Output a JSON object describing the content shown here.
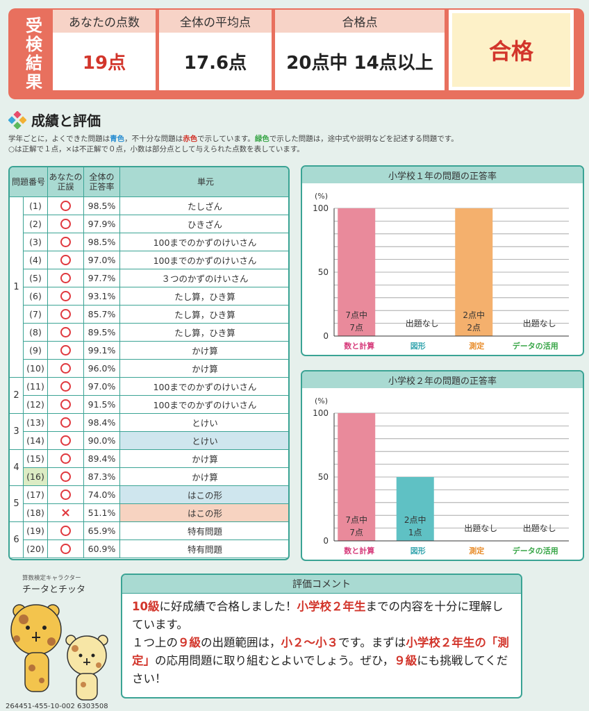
{
  "header": {
    "side_label_chars": [
      "受",
      "検",
      "結",
      "果"
    ],
    "your_score_label": "あなたの点数",
    "your_score": "19点",
    "average_label": "全体の平均点",
    "average": "17.6点",
    "pass_line_label": "合格点",
    "pass_line": "20点中 14点以上",
    "result": "合格"
  },
  "section": {
    "title": "成績と評価",
    "desc1_a": "学年ごとに，よくできた問題は",
    "desc1_blue": "青色",
    "desc1_b": "，不十分な問題は",
    "desc1_red": "赤色",
    "desc1_c": "で示しています。",
    "desc1_green": "緑色",
    "desc1_d": "で示した問題は，途中式や説明などを記述する問題です。",
    "desc2": "○は正解で１点，×は不正解で０点，小数は部分点として与えられた点数を表しています。"
  },
  "table": {
    "headers": {
      "qno": "問題番号",
      "yours_1": "あなたの",
      "yours_2": "正誤",
      "rate_1": "全体の",
      "rate_2": "正答率",
      "unit": "単元"
    },
    "groups": [
      "1",
      "2",
      "3",
      "4",
      "5",
      "6"
    ],
    "rows": [
      {
        "num": "(1)",
        "mark": "○",
        "rate": "98.5%",
        "unit": "たしざん"
      },
      {
        "num": "(2)",
        "mark": "○",
        "rate": "97.9%",
        "unit": "ひきざん"
      },
      {
        "num": "(3)",
        "mark": "○",
        "rate": "98.5%",
        "unit": "100までのかずのけいさん"
      },
      {
        "num": "(4)",
        "mark": "○",
        "rate": "97.0%",
        "unit": "100までのかずのけいさん"
      },
      {
        "num": "(5)",
        "mark": "○",
        "rate": "97.7%",
        "unit": "３つのかずのけいさん"
      },
      {
        "num": "(6)",
        "mark": "○",
        "rate": "93.1%",
        "unit": "たし算，ひき算"
      },
      {
        "num": "(7)",
        "mark": "○",
        "rate": "85.7%",
        "unit": "たし算，ひき算"
      },
      {
        "num": "(8)",
        "mark": "○",
        "rate": "89.5%",
        "unit": "たし算，ひき算"
      },
      {
        "num": "(9)",
        "mark": "○",
        "rate": "99.1%",
        "unit": "かけ算"
      },
      {
        "num": "(10)",
        "mark": "○",
        "rate": "96.0%",
        "unit": "かけ算"
      },
      {
        "num": "(11)",
        "mark": "○",
        "rate": "97.0%",
        "unit": "100までのかずのけいさん"
      },
      {
        "num": "(12)",
        "mark": "○",
        "rate": "91.5%",
        "unit": "100までのかずのけいさん"
      },
      {
        "num": "(13)",
        "mark": "○",
        "rate": "98.4%",
        "unit": "とけい"
      },
      {
        "num": "(14)",
        "mark": "○",
        "rate": "90.0%",
        "unit": "とけい",
        "unit_highlight": "blue"
      },
      {
        "num": "(15)",
        "mark": "○",
        "rate": "89.4%",
        "unit": "かけ算"
      },
      {
        "num": "(16)",
        "mark": "○",
        "rate": "87.3%",
        "unit": "かけ算",
        "num_highlight": "green"
      },
      {
        "num": "(17)",
        "mark": "○",
        "rate": "74.0%",
        "unit": "はこの形",
        "unit_highlight": "blue"
      },
      {
        "num": "(18)",
        "mark": "×",
        "rate": "51.1%",
        "unit": "はこの形",
        "unit_highlight": "red"
      },
      {
        "num": "(19)",
        "mark": "○",
        "rate": "65.9%",
        "unit": "特有問題"
      },
      {
        "num": "(20)",
        "mark": "○",
        "rate": "60.9%",
        "unit": "特有問題"
      }
    ]
  },
  "chart_data": [
    {
      "type": "bar",
      "title": "小学校１年の問題の正答率",
      "ylabel": "(%)",
      "ylim": [
        0,
        100
      ],
      "yticks": [
        "0",
        "50",
        "100"
      ],
      "categories": [
        "数と計算",
        "図形",
        "測定",
        "データの活用"
      ],
      "values": [
        100,
        null,
        100,
        null
      ],
      "bar_labels": [
        [
          "7点中",
          "7点"
        ],
        [
          "出題なし"
        ],
        [
          "2点中",
          "2点"
        ],
        [
          "出題なし"
        ]
      ],
      "colors": [
        "#e98a9b",
        "#5fc1c4",
        "#f4b06d",
        "#6bbf59"
      ],
      "label_colors": [
        "#d63a7a",
        "#3aa7b0",
        "#e88c2a",
        "#39a648"
      ]
    },
    {
      "type": "bar",
      "title": "小学校２年の問題の正答率",
      "ylabel": "(%)",
      "ylim": [
        0,
        100
      ],
      "yticks": [
        "0",
        "50",
        "100"
      ],
      "categories": [
        "数と計算",
        "図形",
        "測定",
        "データの活用"
      ],
      "values": [
        100,
        50,
        null,
        null
      ],
      "bar_labels": [
        [
          "7点中",
          "7点"
        ],
        [
          "2点中",
          "1点"
        ],
        [
          "出題なし"
        ],
        [
          "出題なし"
        ]
      ],
      "colors": [
        "#e98a9b",
        "#5fc1c4",
        "#f4b06d",
        "#6bbf59"
      ],
      "label_colors": [
        "#d63a7a",
        "#3aa7b0",
        "#e88c2a",
        "#39a648"
      ]
    }
  ],
  "characters": {
    "subtitle": "算数検定キャラクター",
    "name": "チータとチッタ"
  },
  "comment": {
    "title": "評価コメント",
    "p1": "10級",
    "p2": "に好成績で合格しました！",
    "p3": "小学校２年生",
    "p4": "までの内容を十分に理解しています。",
    "p5": "１つ上の",
    "p6": "９級",
    "p7": "の出題範囲は，",
    "p8": "小２～小３",
    "p9": "です。まずは",
    "p10": "小学校２年生の「測定」",
    "p11": "の応用問題に取り組むとよいでしょう。ぜひ，",
    "p12": "９級",
    "p13": "にも挑戦してください！"
  },
  "footer_code": "264451-455-10-002 6303508"
}
